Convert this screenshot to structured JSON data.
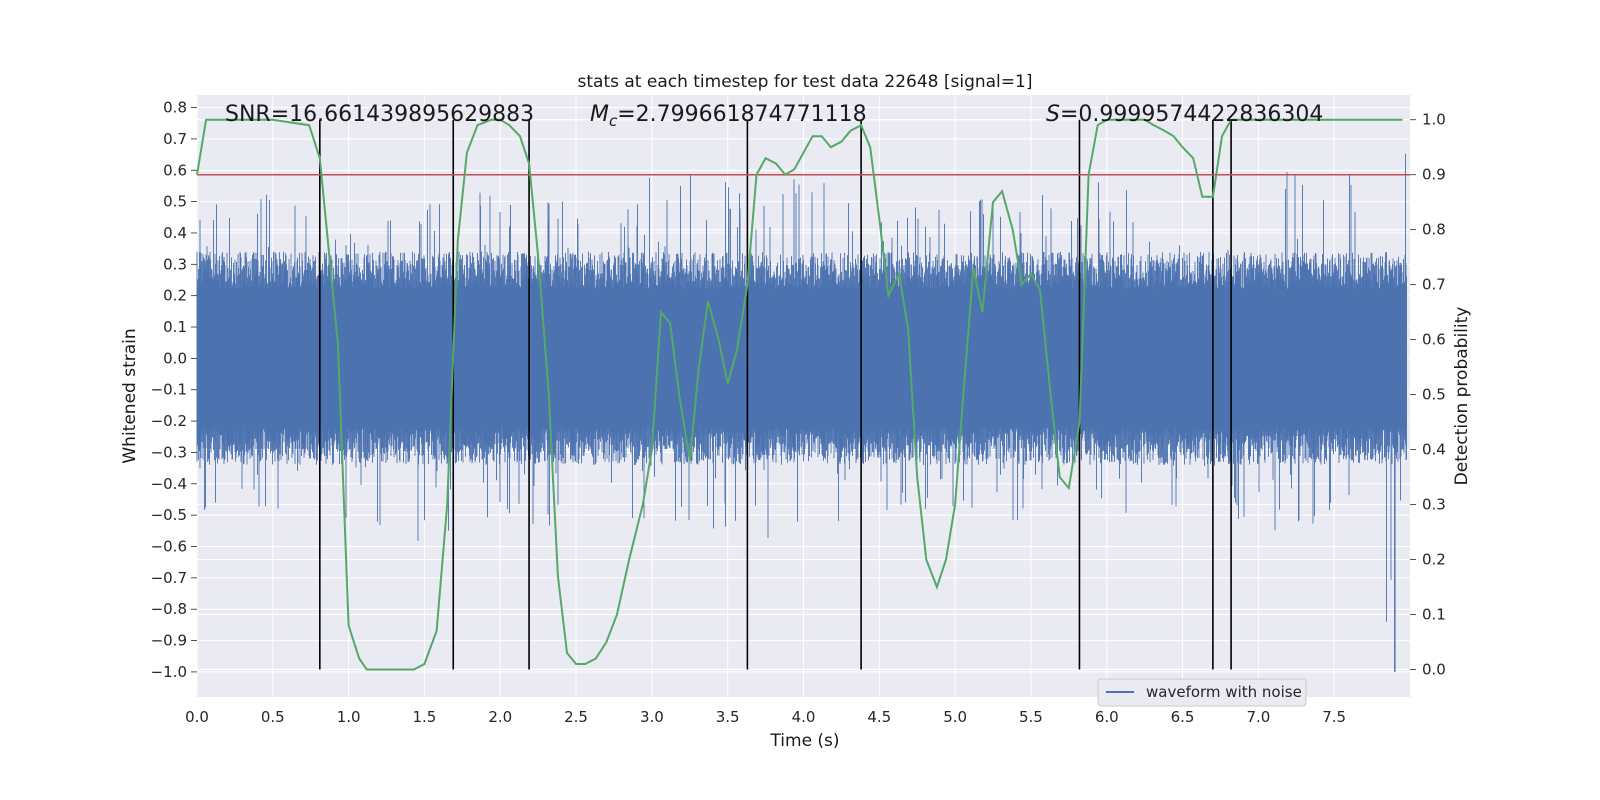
{
  "chart_data": {
    "type": "line",
    "title": "stats at each timestep for test data 22648 [signal=1]",
    "xlabel": "Time (s)",
    "ylabel_left": "Whitened strain",
    "ylabel_right": "Detection probability",
    "xlim": [
      0.0,
      8.0
    ],
    "ylim_left": [
      -1.08,
      0.84
    ],
    "ylim_right": [
      -0.05,
      1.045
    ],
    "x_ticks": [
      "0.0",
      "0.5",
      "1.0",
      "1.5",
      "2.0",
      "2.5",
      "3.0",
      "3.5",
      "4.0",
      "4.5",
      "5.0",
      "5.5",
      "6.0",
      "6.5",
      "7.0",
      "7.5"
    ],
    "y_ticks_left": [
      "0.8",
      "0.7",
      "0.6",
      "0.5",
      "0.4",
      "0.3",
      "0.2",
      "0.1",
      "0.0",
      "−0.1",
      "−0.2",
      "−0.3",
      "−0.4",
      "−0.5",
      "−0.6",
      "−0.7",
      "−0.8",
      "−0.9",
      "−1.0"
    ],
    "y_ticks_right": [
      "1.0",
      "0.9",
      "0.8",
      "0.7",
      "0.6",
      "0.5",
      "0.4",
      "0.3",
      "0.2",
      "0.1",
      "0.0"
    ],
    "annotations": {
      "snr": "SNR=16.661439895629883",
      "mc_symbol": "M",
      "mc_sub": "c",
      "mc_value": "=2.799661874771118",
      "s_symbol": "S",
      "s_value": "=0.9999574422836304"
    },
    "threshold": {
      "value": 0.9,
      "color": "#c44e52"
    },
    "vertical_markers": [
      0.81,
      1.69,
      2.19,
      3.63,
      4.38,
      5.82,
      6.7,
      6.82
    ],
    "vertical_marker_range": [
      0.0,
      1.0
    ],
    "series": [
      {
        "name": "waveform with noise",
        "color": "#4c72b0",
        "kind": "strain",
        "t_end": 7.98,
        "envelope": {
          "t": [
            0.0,
            0.5,
            1.0,
            1.5,
            2.0,
            2.5,
            3.0,
            3.5,
            4.0,
            4.5,
            5.0,
            5.5,
            6.0,
            6.5,
            7.0,
            7.5,
            7.98
          ],
          "peak_hi": [
            0.55,
            0.52,
            0.48,
            0.52,
            0.55,
            0.5,
            0.58,
            0.6,
            0.58,
            0.52,
            0.5,
            0.52,
            0.58,
            0.58,
            0.58,
            0.62,
            0.7
          ],
          "peak_lo": [
            -0.55,
            -0.55,
            -0.58,
            -0.6,
            -0.52,
            -0.55,
            -0.52,
            -0.6,
            -0.55,
            -0.52,
            -0.5,
            -0.55,
            -0.52,
            -0.52,
            -0.55,
            -0.58,
            -1.0
          ],
          "dense_band": [
            0.22,
            0.22,
            0.22,
            0.22,
            0.22,
            0.22,
            0.22,
            0.22,
            0.22,
            0.22,
            0.22,
            0.22,
            0.22,
            0.22,
            0.22,
            0.22,
            0.22
          ]
        }
      },
      {
        "name": "detection probability",
        "color": "#55a868",
        "kind": "probability",
        "x": [
          0.0,
          0.06,
          0.15,
          0.3,
          0.5,
          0.74,
          0.81,
          0.93,
          1.0,
          1.07,
          1.12,
          1.19,
          1.25,
          1.31,
          1.37,
          1.43,
          1.5,
          1.58,
          1.65,
          1.72,
          1.78,
          1.85,
          1.94,
          2.0,
          2.06,
          2.13,
          2.19,
          2.25,
          2.32,
          2.38,
          2.44,
          2.5,
          2.56,
          2.63,
          2.7,
          2.77,
          2.85,
          2.94,
          3.0,
          3.06,
          3.12,
          3.18,
          3.25,
          3.31,
          3.37,
          3.44,
          3.5,
          3.56,
          3.63,
          3.69,
          3.75,
          3.82,
          3.88,
          3.94,
          4.0,
          4.06,
          4.12,
          4.18,
          4.25,
          4.31,
          4.38,
          4.44,
          4.5,
          4.56,
          4.63,
          4.69,
          4.75,
          4.81,
          4.88,
          4.94,
          5.0,
          5.06,
          5.12,
          5.18,
          5.25,
          5.31,
          5.38,
          5.44,
          5.5,
          5.56,
          5.63,
          5.69,
          5.75,
          5.82,
          5.88,
          5.94,
          6.0,
          6.07,
          6.13,
          6.19,
          6.25,
          6.31,
          6.38,
          6.44,
          6.5,
          6.57,
          6.63,
          6.7,
          6.76,
          6.82,
          6.88,
          6.94,
          7.0,
          7.5,
          7.95
        ],
        "values": [
          0.9,
          1.0,
          1.0,
          1.0,
          1.0,
          0.99,
          0.93,
          0.59,
          0.08,
          0.02,
          0.0,
          0.0,
          0.0,
          0.0,
          0.0,
          0.0,
          0.01,
          0.07,
          0.3,
          0.78,
          0.94,
          0.99,
          1.0,
          1.0,
          0.99,
          0.97,
          0.92,
          0.75,
          0.5,
          0.17,
          0.03,
          0.01,
          0.01,
          0.02,
          0.05,
          0.1,
          0.2,
          0.3,
          0.4,
          0.65,
          0.63,
          0.5,
          0.38,
          0.55,
          0.67,
          0.6,
          0.52,
          0.58,
          0.7,
          0.9,
          0.93,
          0.92,
          0.9,
          0.91,
          0.94,
          0.97,
          0.97,
          0.95,
          0.96,
          0.98,
          0.99,
          0.95,
          0.82,
          0.68,
          0.72,
          0.62,
          0.35,
          0.2,
          0.15,
          0.2,
          0.3,
          0.52,
          0.73,
          0.65,
          0.85,
          0.87,
          0.8,
          0.7,
          0.72,
          0.69,
          0.5,
          0.35,
          0.33,
          0.45,
          0.9,
          0.99,
          1.0,
          1.0,
          1.0,
          1.0,
          1.0,
          0.99,
          0.98,
          0.97,
          0.95,
          0.93,
          0.86,
          0.86,
          0.97,
          1.0,
          1.0,
          1.0,
          1.0,
          1.0,
          1.0
        ]
      }
    ],
    "legend": {
      "entries": [
        "waveform with noise"
      ],
      "location": "lower-right"
    },
    "grid": true,
    "background": "#eaeaf2"
  }
}
